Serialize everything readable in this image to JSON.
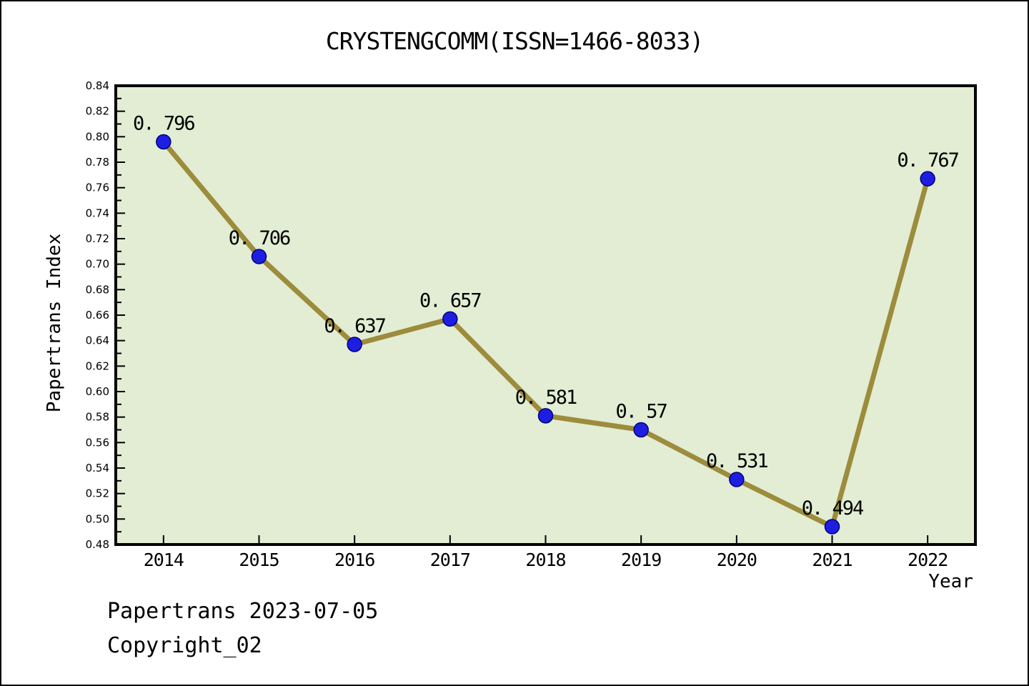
{
  "title": "CRYSTENGCOMM(ISSN=1466-8033)",
  "footer": {
    "line1": "Papertrans 2023-07-05",
    "line2": "Copyright_02"
  },
  "chart_data": {
    "type": "line",
    "title": "CRYSTENGCOMM(ISSN=1466-8033)",
    "xlabel": "Year",
    "ylabel": "Papertrans Index",
    "x": [
      2014,
      2015,
      2016,
      2017,
      2018,
      2019,
      2020,
      2021,
      2022
    ],
    "series": [
      {
        "name": "Papertrans Index",
        "values": [
          0.796,
          0.706,
          0.637,
          0.657,
          0.581,
          0.57,
          0.531,
          0.494,
          0.767
        ],
        "point_labels": [
          "0. 796",
          "0. 706",
          "0. 637",
          "0. 657",
          "0. 581",
          "0. 57",
          "0. 531",
          "0. 494",
          "0. 767"
        ]
      }
    ],
    "xlim": [
      2013.5,
      2022.5
    ],
    "ylim": [
      0.48,
      0.84
    ],
    "ytick_step": 0.02,
    "yminor_step": 0.01,
    "grid": false,
    "legend": "none",
    "colors": {
      "line": "#9c8c3c",
      "marker": "#1e1ee0",
      "marker_edge": "#000080",
      "plot_bg": "#e2edd3",
      "frame": "#000000",
      "text": "#000000"
    }
  }
}
